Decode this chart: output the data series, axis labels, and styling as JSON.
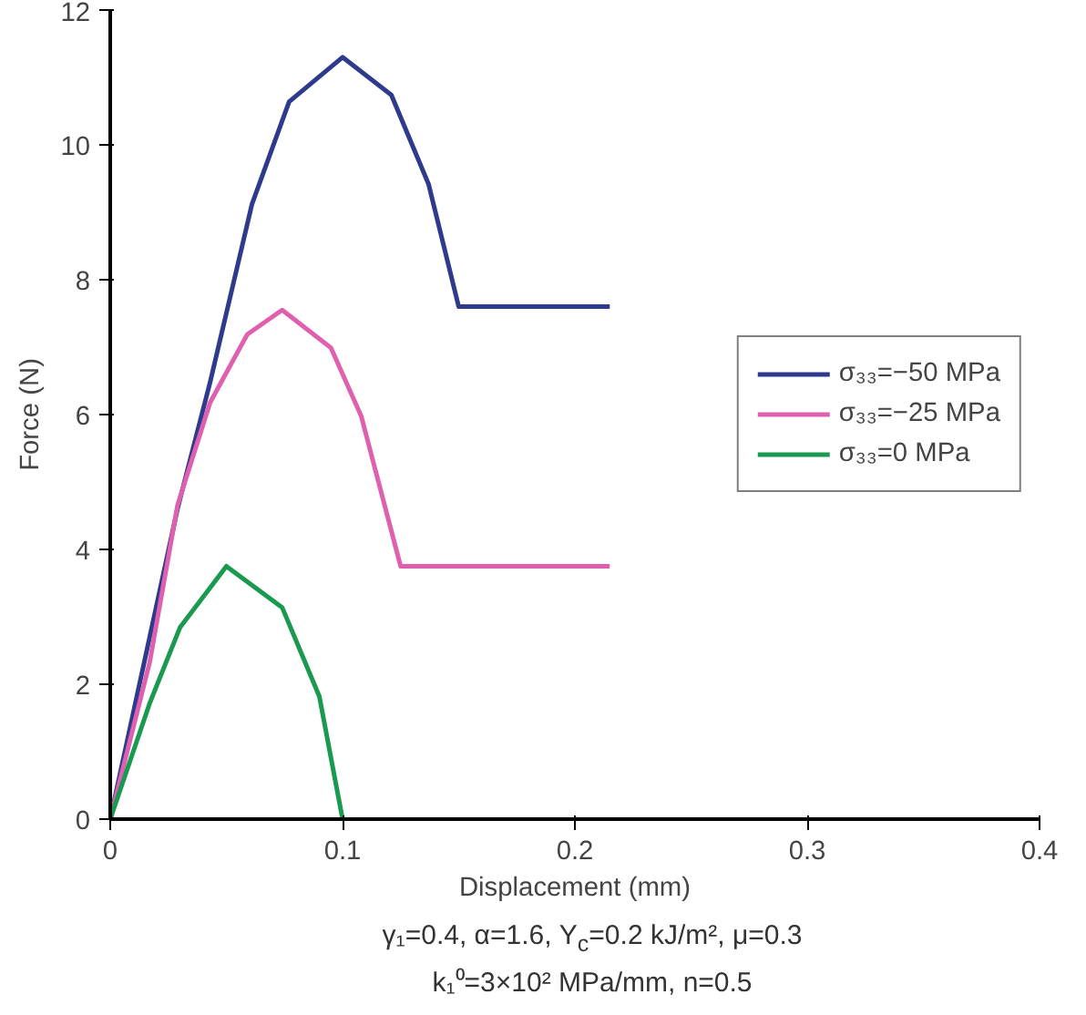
{
  "chart_data": {
    "type": "line",
    "xlabel": "Displacement (mm)",
    "ylabel": "Force (N)",
    "xlim": [
      0,
      0.4
    ],
    "xticks": [
      0,
      0.1,
      0.2,
      0.3,
      0.4
    ],
    "ylim": [
      0,
      12
    ],
    "yticks": [
      0,
      2,
      4,
      6,
      8,
      10,
      12
    ],
    "grid": false,
    "legend": "right",
    "marker": "none",
    "line_style": "solid",
    "series": [
      {
        "name": "σ₃₃=−50 MPa",
        "color": "#2e3a8c",
        "x": [
          0,
          0.029,
          0.043,
          0.061,
          0.077,
          0.1,
          0.121,
          0.137,
          0.15,
          0.215
        ],
        "values": [
          0,
          4.61,
          6.48,
          9.12,
          10.64,
          11.3,
          10.74,
          9.42,
          7.6,
          7.6
        ]
      },
      {
        "name": "σ₃₃=−25 MPa",
        "color": "#e060b0",
        "x": [
          0,
          0.017,
          0.029,
          0.043,
          0.059,
          0.074,
          0.095,
          0.108,
          0.125,
          0.215
        ],
        "values": [
          0,
          2.33,
          4.66,
          6.18,
          7.19,
          7.55,
          6.99,
          5.98,
          3.75,
          3.75
        ]
      },
      {
        "name": "σ₃₃=0 MPa",
        "color": "#1a9a50",
        "x": [
          0,
          0.017,
          0.03,
          0.05,
          0.074,
          0.09,
          0.1
        ],
        "values": [
          0,
          1.72,
          2.84,
          3.75,
          3.14,
          1.82,
          0
        ]
      }
    ],
    "annotations": [
      "γ₁=0.4, α=1.6, Y$_{c}$=0.2 kJ/m², μ=0.3",
      "k₁⁰=3×10² MPa/mm, n=0.5"
    ]
  }
}
